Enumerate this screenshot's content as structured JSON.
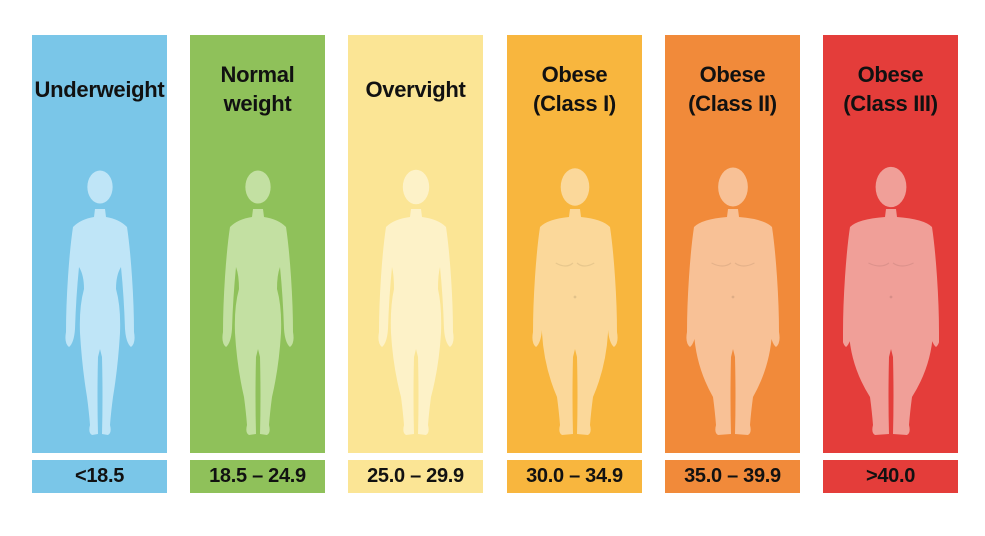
{
  "categories": [
    {
      "id": "underweight",
      "title_lines": [
        "Underweight"
      ],
      "range": "<18.5",
      "color": "#7ac6e8",
      "figure_color": "#bfe5f7",
      "body_type": "slim"
    },
    {
      "id": "normal-weight",
      "title_lines": [
        "Normal",
        "weight"
      ],
      "range": "18.5 – 24.9",
      "color": "#8fc15a",
      "figure_color": "#c3e0a2",
      "body_type": "normal"
    },
    {
      "id": "overweight",
      "title_lines": [
        "Overvight"
      ],
      "range": "25.0 – 29.9",
      "color": "#fbe595",
      "figure_color": "#fdf2c8",
      "body_type": "overweight"
    },
    {
      "id": "obese-class-1",
      "title_lines": [
        "Obese",
        "(Class I)"
      ],
      "range": "30.0 – 34.9",
      "color": "#f8b63e",
      "figure_color": "#fbd89a",
      "body_type": "obese1"
    },
    {
      "id": "obese-class-2",
      "title_lines": [
        "Obese",
        "(Class II)"
      ],
      "range": "35.0 – 39.9",
      "color": "#f18a3a",
      "figure_color": "#f8c196",
      "body_type": "obese2"
    },
    {
      "id": "obese-class-3",
      "title_lines": [
        "Obese",
        "(Class III)"
      ],
      "range": ">40.0",
      "color": "#e43d3a",
      "figure_color": "#f09f98",
      "body_type": "obese3"
    }
  ]
}
